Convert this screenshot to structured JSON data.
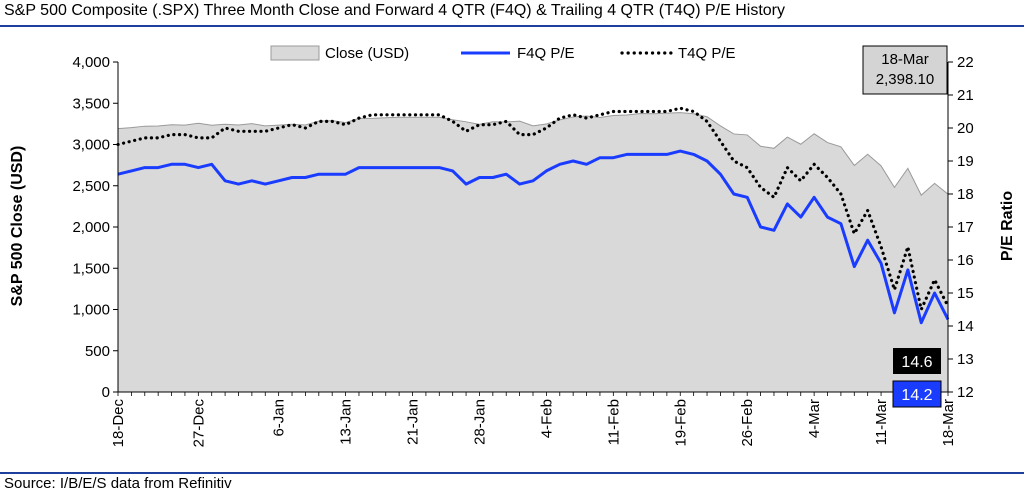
{
  "title": "S&P 500 Composite (.SPX) Three Month Close and Forward 4 QTR (F4Q) & Trailing 4 QTR (T4Q) P/E History",
  "source": "Source: I/B/E/S data from Refinitiv",
  "callout": {
    "date": "18-Mar",
    "value": "2,398.10"
  },
  "end_labels": {
    "t4q": "14.6",
    "f4q": "14.2"
  },
  "colors": {
    "area_fill": "#d9d9d9",
    "area_stroke": "#9a9a9a",
    "f4q": "#1a3cff",
    "t4q": "#000000",
    "rule": "#1f3f9f"
  },
  "chart_data": {
    "type": "area+line",
    "title": "S&P 500 Composite (.SPX) Three Month Close and Forward 4 QTR (F4Q) & Trailing 4 QTR (T4Q) P/E History",
    "ylabel_left": "S&P 500 Close (USD)",
    "ylabel_right": "P/E Ratio",
    "ylim_left": [
      0,
      4000
    ],
    "ylim_right": [
      12,
      22
    ],
    "left_ticks": [
      "0",
      "500",
      "1,000",
      "1,500",
      "2,000",
      "2,500",
      "3,000",
      "3,500",
      "4,000"
    ],
    "right_ticks": [
      "12",
      "13",
      "14",
      "15",
      "16",
      "17",
      "18",
      "19",
      "20",
      "21",
      "22"
    ],
    "x_tick_labels": [
      "18-Dec",
      "27-Dec",
      "6-Jan",
      "13-Jan",
      "21-Jan",
      "28-Jan",
      "4-Feb",
      "11-Feb",
      "19-Feb",
      "26-Feb",
      "4-Mar",
      "11-Mar",
      "18-Mar"
    ],
    "x_tick_index": [
      0,
      6,
      12,
      17,
      22,
      27,
      32,
      37,
      42,
      47,
      52,
      57,
      62
    ],
    "legend": [
      "Close (USD)",
      "F4Q P/E",
      "T4Q P/E"
    ],
    "legend_position": "top",
    "grid": false,
    "series": [
      {
        "name": "Close (USD)",
        "axis": "left",
        "kind": "area",
        "values": [
          3192,
          3205,
          3222,
          3224,
          3240,
          3235,
          3258,
          3234,
          3246,
          3237,
          3253,
          3226,
          3235,
          3246,
          3237,
          3283,
          3289,
          3265,
          3316,
          3317,
          3325,
          3330,
          3330,
          3330,
          3330,
          3300,
          3275,
          3244,
          3276,
          3273,
          3283,
          3226,
          3249,
          3298,
          3334,
          3345,
          3328,
          3352,
          3357,
          3375,
          3373,
          3380,
          3386,
          3373,
          3337,
          3226,
          3128,
          3116,
          2979,
          2954,
          3090,
          3003,
          3130,
          3023,
          2972,
          2746,
          2882,
          2741,
          2480,
          2711,
          2386,
          2529,
          2398
        ]
      },
      {
        "name": "F4Q P/E",
        "axis": "right",
        "kind": "line",
        "values": [
          18.6,
          18.7,
          18.8,
          18.8,
          18.9,
          18.9,
          18.8,
          18.9,
          18.4,
          18.3,
          18.4,
          18.3,
          18.4,
          18.5,
          18.5,
          18.6,
          18.6,
          18.6,
          18.8,
          18.8,
          18.8,
          18.8,
          18.8,
          18.8,
          18.8,
          18.7,
          18.3,
          18.5,
          18.5,
          18.6,
          18.3,
          18.4,
          18.7,
          18.9,
          19.0,
          18.9,
          19.1,
          19.1,
          19.2,
          19.2,
          19.2,
          19.2,
          19.3,
          19.2,
          19.0,
          18.6,
          18.0,
          17.9,
          17.0,
          16.9,
          17.7,
          17.3,
          17.9,
          17.3,
          17.1,
          15.8,
          16.6,
          15.9,
          14.4,
          15.7,
          14.1,
          15.0,
          14.2
        ]
      },
      {
        "name": "T4Q P/E",
        "axis": "right",
        "kind": "dotted-line",
        "values": [
          19.5,
          19.6,
          19.7,
          19.7,
          19.8,
          19.8,
          19.7,
          19.7,
          20.0,
          19.9,
          19.9,
          19.9,
          20.0,
          20.1,
          20.0,
          20.2,
          20.2,
          20.1,
          20.3,
          20.4,
          20.4,
          20.4,
          20.4,
          20.4,
          20.4,
          20.2,
          19.9,
          20.1,
          20.1,
          20.2,
          19.8,
          19.8,
          20.0,
          20.3,
          20.4,
          20.3,
          20.4,
          20.5,
          20.5,
          20.5,
          20.5,
          20.5,
          20.6,
          20.5,
          20.2,
          19.6,
          19.0,
          18.8,
          18.2,
          17.9,
          18.8,
          18.4,
          18.9,
          18.5,
          18.0,
          16.8,
          17.5,
          16.4,
          15.1,
          16.4,
          14.5,
          15.4,
          14.6
        ]
      }
    ]
  }
}
